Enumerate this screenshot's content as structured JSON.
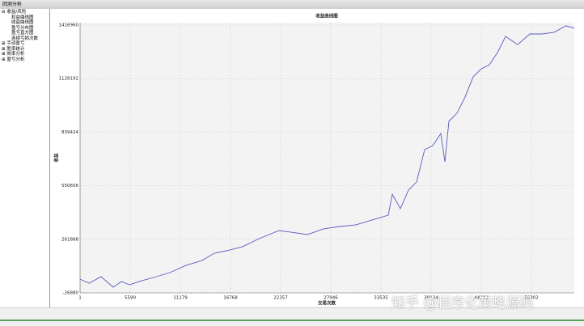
{
  "window": {
    "title": "回测分析"
  },
  "tree": {
    "items": [
      "收益/风险",
      "权益曲线图",
      "收益曲线图",
      "盈亏分布图",
      "盈亏直方图",
      "连续亏损次数",
      "手动盈亏",
      "胜率统计",
      "效率分析",
      "盈亏分析"
    ]
  },
  "watermark": "知乎 @程序化策略源码",
  "chart_data": {
    "type": "line",
    "title": "收益曲线图",
    "x_label": "交易次数",
    "y_label": "收益",
    "xlim": [
      1,
      55083
    ],
    "ylim": [
      -26880,
      1430000
    ],
    "xticks": [
      1,
      5590,
      11179,
      16768,
      22357,
      27946,
      33535,
      39124,
      44713,
      50302
    ],
    "yticks": [
      -26880,
      261888,
      550656,
      839424,
      1128192,
      1416960
    ],
    "grid": true,
    "color": "#5a5ac0",
    "x": [
      1,
      993,
      2345,
      3697,
      4599,
      5500,
      6853,
      8205,
      10008,
      11811,
      13614,
      14966,
      16318,
      18121,
      19924,
      22178,
      23530,
      25333,
      27136,
      28939,
      30742,
      32545,
      34348,
      34799,
      35700,
      36602,
      37503,
      38405,
      39307,
      40208,
      40659,
      41110,
      42012,
      42913,
      43815,
      44716,
      45618,
      46519,
      47421,
      48773,
      50125,
      51477,
      52829,
      54182,
      55083
    ],
    "values": [
      47000,
      25000,
      60000,
      3600,
      34000,
      16700,
      38000,
      56000,
      82000,
      121000,
      148000,
      187000,
      200000,
      222000,
      265000,
      309000,
      300000,
      287000,
      318000,
      331000,
      340000,
      366000,
      392000,
      505000,
      427000,
      527000,
      571000,
      745000,
      767000,
      832000,
      680000,
      898000,
      942000,
      1029000,
      1138000,
      1181000,
      1203000,
      1268000,
      1356000,
      1312000,
      1369000,
      1369000,
      1378000,
      1413000,
      1400000
    ]
  }
}
